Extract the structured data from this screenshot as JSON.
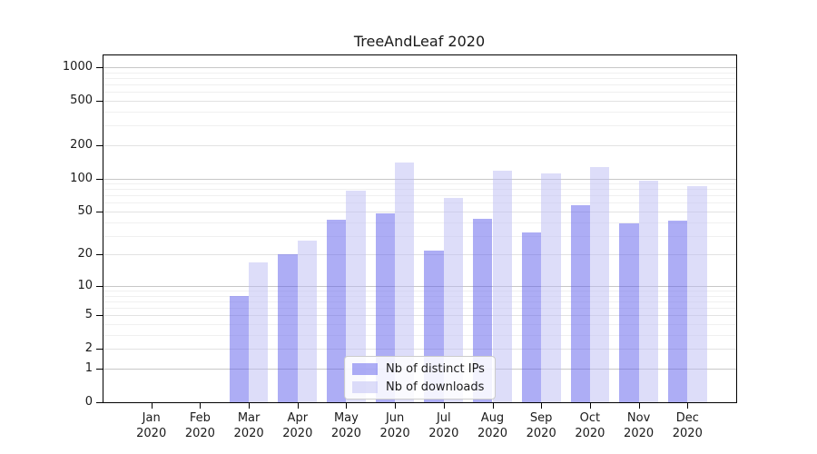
{
  "chart_data": {
    "type": "bar",
    "title": "TreeAndLeaf 2020",
    "year_label": "2020",
    "categories": [
      "Jan",
      "Feb",
      "Mar",
      "Apr",
      "May",
      "Jun",
      "Jul",
      "Aug",
      "Sep",
      "Oct",
      "Nov",
      "Dec"
    ],
    "series": [
      {
        "name": "Nb of distinct IPs",
        "color": "rgba(92, 92, 235, 0.5)",
        "values": [
          0,
          0,
          8,
          20,
          42,
          48,
          22,
          43,
          32,
          57,
          39,
          41
        ]
      },
      {
        "name": "Nb of downloads",
        "color": "rgba(187, 187, 243, 0.5)",
        "values": [
          0,
          0,
          17,
          27,
          77,
          139,
          67,
          117,
          110,
          127,
          95,
          85
        ]
      }
    ],
    "y_axis": {
      "scale": "symlog (pos = log10(1+value))",
      "ticks": [
        0,
        1,
        2,
        5,
        10,
        20,
        50,
        100,
        200,
        500,
        1000
      ],
      "major_ticks": [
        1,
        10,
        100,
        1000
      ],
      "minor_ticks": [
        3,
        4,
        6,
        7,
        8,
        9,
        30,
        40,
        60,
        70,
        80,
        90,
        300,
        400,
        600,
        700,
        800,
        900
      ],
      "range": [
        0,
        1000
      ]
    },
    "x_axis": {
      "label_format": "month over year, two lines"
    },
    "legend": {
      "position": "lower center inside plot"
    },
    "layout": {
      "grid": "horizontal only"
    },
    "colors": {
      "frame": "#000000",
      "grid_major": "#c7c7c7",
      "grid_labeled": "#e2e2e2",
      "grid_minor": "#f0f0f0",
      "text": "#1a1a1a",
      "legend_border": "#cccccc"
    }
  }
}
